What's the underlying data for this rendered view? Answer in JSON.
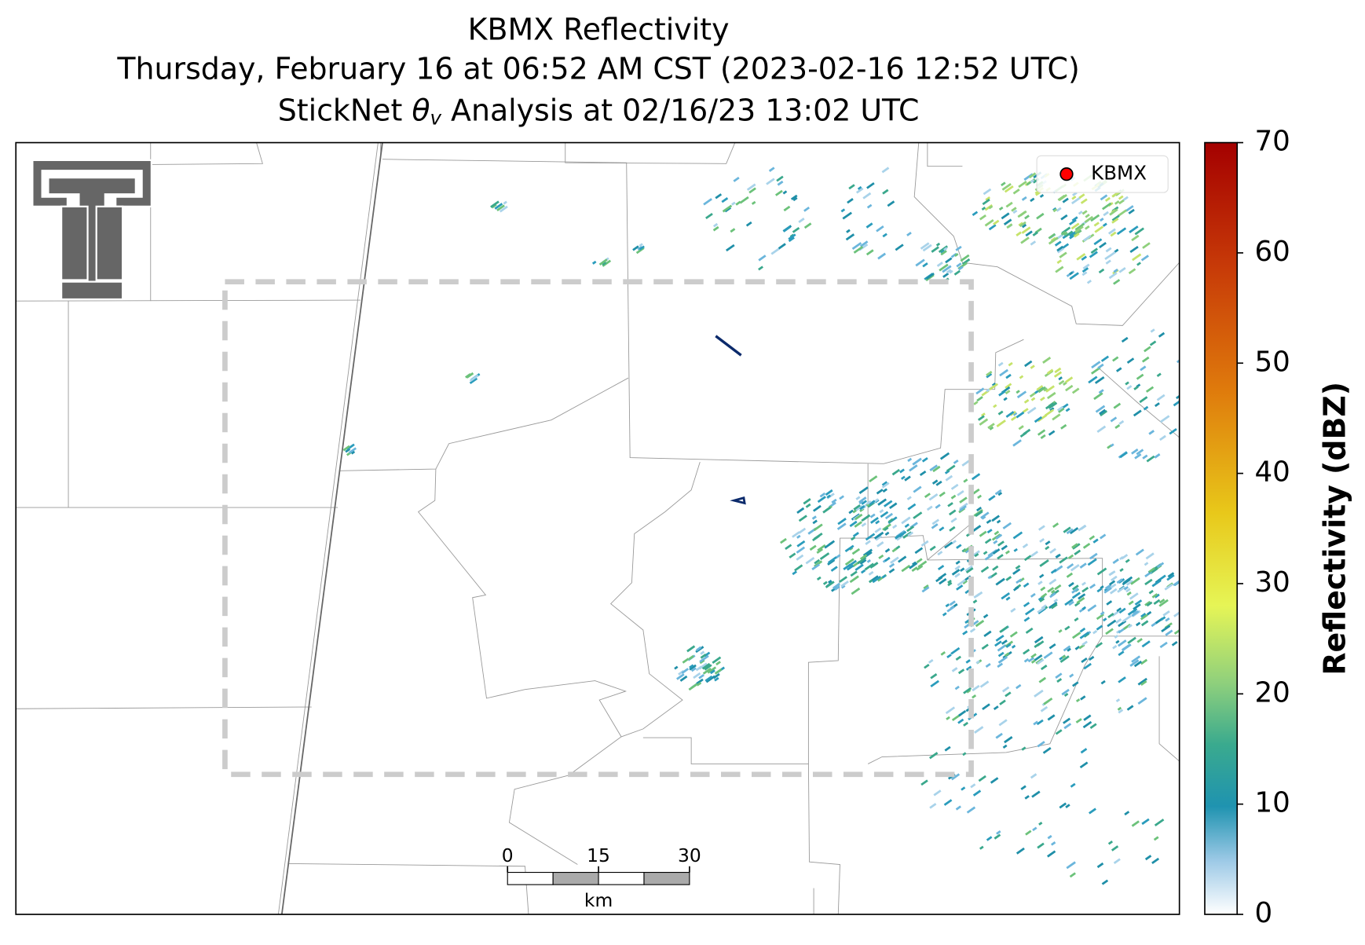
{
  "title": {
    "line1": "KBMX Reflectivity",
    "line2": "Thursday, February 16 at 06:52 AM CST (2023-02-16 12:52 UTC)",
    "line3_prefix": "StickNet ",
    "line3_symbol": "θ",
    "line3_subscript": "v",
    "line3_suffix": " Analysis at 02/16/23 13:02 UTC"
  },
  "legend": {
    "label": "KBMX"
  },
  "colorbar": {
    "label": "Reflectivity (dBZ)",
    "lim": [
      0,
      70
    ],
    "ticks": [
      0,
      10,
      20,
      30,
      40,
      50,
      60,
      70
    ]
  },
  "scale_bar": {
    "ticks": [
      0,
      15,
      30
    ],
    "unit": "km"
  }
}
